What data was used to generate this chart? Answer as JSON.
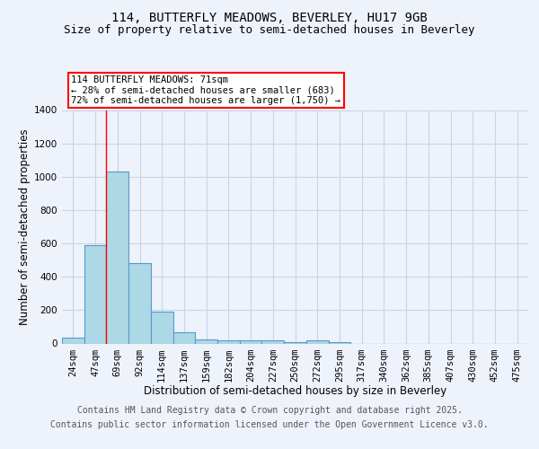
{
  "title_line1": "114, BUTTERFLY MEADOWS, BEVERLEY, HU17 9GB",
  "title_line2": "Size of property relative to semi-detached houses in Beverley",
  "xlabel": "Distribution of semi-detached houses by size in Beverley",
  "ylabel": "Number of semi-detached properties",
  "categories": [
    "24sqm",
    "47sqm",
    "69sqm",
    "92sqm",
    "114sqm",
    "137sqm",
    "159sqm",
    "182sqm",
    "204sqm",
    "227sqm",
    "250sqm",
    "272sqm",
    "295sqm",
    "317sqm",
    "340sqm",
    "362sqm",
    "385sqm",
    "407sqm",
    "430sqm",
    "452sqm",
    "475sqm"
  ],
  "values": [
    35,
    590,
    1030,
    480,
    190,
    70,
    25,
    20,
    20,
    20,
    10,
    20,
    10,
    0,
    0,
    0,
    0,
    0,
    0,
    0,
    0
  ],
  "bar_color": "#add8e6",
  "bar_edge_color": "#5599cc",
  "red_line_index": 2,
  "annotation_text": "114 BUTTERFLY MEADOWS: 71sqm\n← 28% of semi-detached houses are smaller (683)\n72% of semi-detached houses are larger (1,750) →",
  "ylim": [
    0,
    1400
  ],
  "yticks": [
    0,
    200,
    400,
    600,
    800,
    1000,
    1200,
    1400
  ],
  "footer_line1": "Contains HM Land Registry data © Crown copyright and database right 2025.",
  "footer_line2": "Contains public sector information licensed under the Open Government Licence v3.0.",
  "bg_color": "#eef2fb",
  "plot_bg_color": "#eef2fb",
  "grid_color": "#c8d4e8",
  "title_fontsize": 10,
  "subtitle_fontsize": 9,
  "axis_label_fontsize": 8.5,
  "tick_fontsize": 7.5,
  "annotation_fontsize": 7.5,
  "footer_fontsize": 7
}
